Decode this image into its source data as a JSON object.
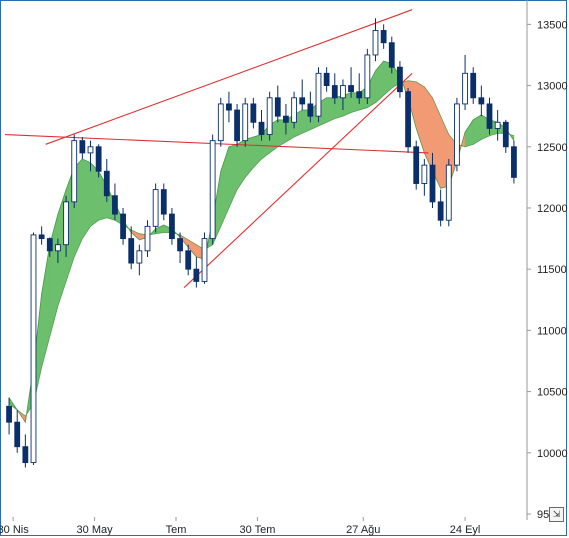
{
  "chart_data": {
    "type": "candlestick",
    "x_tick_labels": [
      "30 Nis",
      "30 May",
      "Tem",
      "30 Tem",
      "27 Ağu",
      "24 Eyl"
    ],
    "y_tick_labels": [
      "13500",
      "13000",
      "12500",
      "12000",
      "11500",
      "11000",
      "10500",
      "10000",
      "9500"
    ],
    "ylim": [
      9500,
      13650
    ],
    "y_axis_position": "right",
    "grid": false,
    "colors": {
      "candle_down": "#0b2f6b",
      "candle_up_outline": "#0b2f6b",
      "ribbon_bull": "#6cbf6c",
      "ribbon_bear": "#f29a74",
      "trendline": "#e03030",
      "axis": "#9a9a9a"
    },
    "candles": [
      [
        10380,
        10450,
        10150,
        10250
      ],
      [
        10250,
        10350,
        10000,
        10050
      ],
      [
        10050,
        10150,
        9880,
        9920
      ],
      [
        9920,
        11800,
        9900,
        11780
      ],
      [
        11780,
        11850,
        11700,
        11750
      ],
      [
        11750,
        11760,
        11600,
        11650
      ],
      [
        11650,
        11750,
        11550,
        11700
      ],
      [
        11700,
        12100,
        11600,
        12050
      ],
      [
        12050,
        12600,
        12000,
        12550
      ],
      [
        12550,
        12580,
        12400,
        12450
      ],
      [
        12450,
        12550,
        12300,
        12500
      ],
      [
        12500,
        12520,
        12250,
        12300
      ],
      [
        12300,
        12400,
        12050,
        12100
      ],
      [
        12100,
        12200,
        11900,
        11950
      ],
      [
        11950,
        12000,
        11700,
        11750
      ],
      [
        11750,
        11850,
        11500,
        11550
      ],
      [
        11550,
        11700,
        11450,
        11650
      ],
      [
        11650,
        11900,
        11600,
        11850
      ],
      [
        11850,
        12200,
        11800,
        12150
      ],
      [
        12150,
        12200,
        11900,
        11950
      ],
      [
        11950,
        12000,
        11700,
        11750
      ],
      [
        11750,
        11800,
        11550,
        11650
      ],
      [
        11650,
        11700,
        11450,
        11500
      ],
      [
        11500,
        11600,
        11350,
        11400
      ],
      [
        11400,
        11800,
        11380,
        11750
      ],
      [
        11750,
        12600,
        11700,
        12550
      ],
      [
        12550,
        12900,
        12500,
        12850
      ],
      [
        12850,
        12950,
        12700,
        12800
      ],
      [
        12800,
        12850,
        12500,
        12550
      ],
      [
        12550,
        12900,
        12500,
        12850
      ],
      [
        12850,
        12900,
        12650,
        12700
      ],
      [
        12700,
        12800,
        12550,
        12600
      ],
      [
        12600,
        12950,
        12550,
        12900
      ],
      [
        12900,
        13000,
        12700,
        12750
      ],
      [
        12750,
        12850,
        12600,
        12700
      ],
      [
        12700,
        12950,
        12650,
        12900
      ],
      [
        12900,
        13050,
        12800,
        12850
      ],
      [
        12850,
        12950,
        12700,
        12750
      ],
      [
        12750,
        13150,
        12700,
        13100
      ],
      [
        13100,
        13150,
        12950,
        13000
      ],
      [
        13000,
        13100,
        12850,
        12900
      ],
      [
        12900,
        13050,
        12800,
        13000
      ],
      [
        13000,
        13150,
        12900,
        12950
      ],
      [
        12950,
        13100,
        12850,
        12900
      ],
      [
        12900,
        13300,
        12850,
        13250
      ],
      [
        13250,
        13550,
        13200,
        13450
      ],
      [
        13450,
        13500,
        13300,
        13350
      ],
      [
        13350,
        13400,
        13100,
        13150
      ],
      [
        13150,
        13200,
        12900,
        12950
      ],
      [
        12950,
        12980,
        12450,
        12500
      ],
      [
        12500,
        12550,
        12150,
        12200
      ],
      [
        12200,
        12400,
        12100,
        12350
      ],
      [
        12350,
        12450,
        12000,
        12050
      ],
      [
        12050,
        12150,
        11850,
        11900
      ],
      [
        11900,
        12400,
        11850,
        12350
      ],
      [
        12350,
        12900,
        12300,
        12850
      ],
      [
        12850,
        13250,
        12800,
        13100
      ],
      [
        13100,
        13150,
        12850,
        12900
      ],
      [
        12900,
        13000,
        12750,
        12850
      ],
      [
        12850,
        12900,
        12600,
        12650
      ],
      [
        12650,
        12800,
        12550,
        12700
      ],
      [
        12700,
        12720,
        12450,
        12500
      ],
      [
        12500,
        12550,
        12200,
        12250
      ]
    ],
    "fast_ma": [
      10450,
      10350,
      10250,
      10700,
      11300,
      11700,
      11950,
      12150,
      12330,
      12400,
      12370,
      12300,
      12180,
      12040,
      11900,
      11800,
      11740,
      11760,
      11830,
      11860,
      11830,
      11760,
      11680,
      11600,
      11580,
      11900,
      12300,
      12500,
      12520,
      12560,
      12580,
      12600,
      12680,
      12720,
      12720,
      12760,
      12800,
      12800,
      12860,
      12900,
      12900,
      12920,
      12940,
      12940,
      12990,
      13120,
      13200,
      13180,
      13080,
      12900,
      12650,
      12450,
      12300,
      12160,
      12180,
      12380,
      12620,
      12720,
      12760,
      12720,
      12700,
      12650,
      12550
    ],
    "slow_ma": [
      10400,
      10350,
      10300,
      10400,
      10700,
      10950,
      11200,
      11400,
      11600,
      11750,
      11850,
      11900,
      11920,
      11900,
      11860,
      11820,
      11790,
      11780,
      11790,
      11800,
      11800,
      11780,
      11740,
      11700,
      11660,
      11700,
      11850,
      12000,
      12150,
      12250,
      12330,
      12400,
      12450,
      12500,
      12540,
      12580,
      12610,
      12640,
      12670,
      12700,
      12730,
      12750,
      12780,
      12800,
      12820,
      12860,
      12920,
      12980,
      13020,
      13040,
      13030,
      12990,
      12900,
      12750,
      12600,
      12520,
      12500,
      12520,
      12560,
      12590,
      12610,
      12610,
      12590
    ],
    "trendlines": [
      {
        "from": [
          -0.5,
          12600
        ],
        "to": [
          51.5,
          12450
        ]
      },
      {
        "from": [
          4.5,
          12520
        ],
        "to": [
          49.5,
          13620
        ]
      },
      {
        "from": [
          21.5,
          11350
        ],
        "to": [
          49.5,
          13100
        ]
      }
    ],
    "x_tick_positions": [
      0.5,
      10.5,
      20.5,
      30.5,
      43.5,
      56
    ]
  },
  "corner_button": {
    "glyph": "⇲",
    "icon": "expand-icon"
  }
}
